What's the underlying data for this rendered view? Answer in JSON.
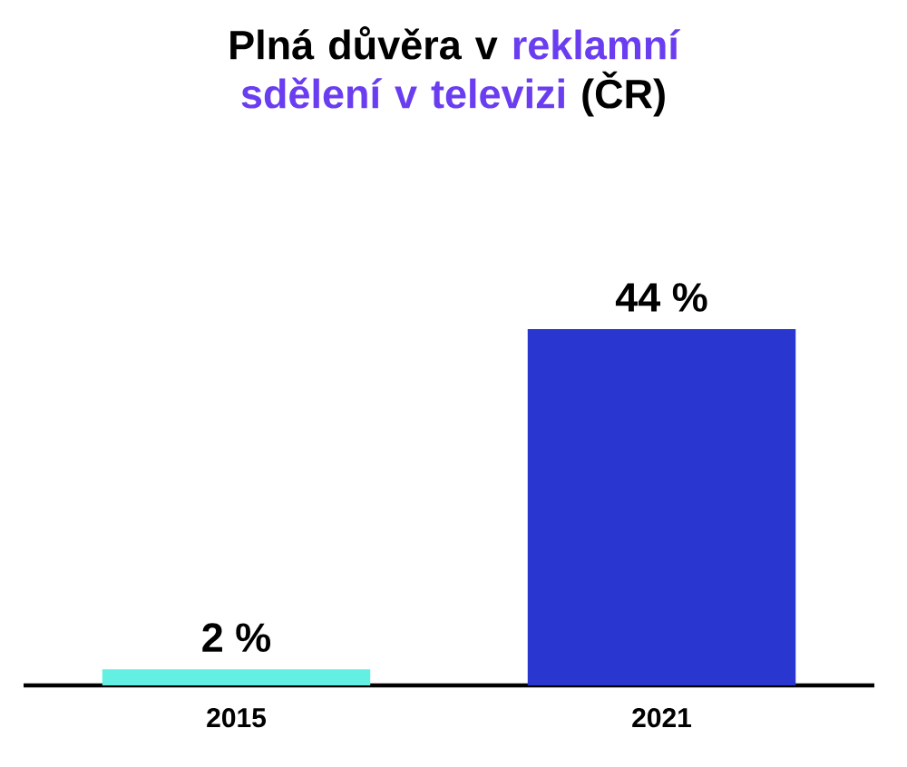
{
  "chart_data": {
    "type": "bar",
    "title": "Plná důvěra v **reklamní sdělení v televizi** (ČR)",
    "categories": [
      "2015",
      "2021"
    ],
    "values": [
      2,
      44
    ],
    "colors": [
      "#63efe2",
      "#2a36d0"
    ],
    "value_labels": [
      "2 %",
      "44 %"
    ],
    "relative": false
  }
}
